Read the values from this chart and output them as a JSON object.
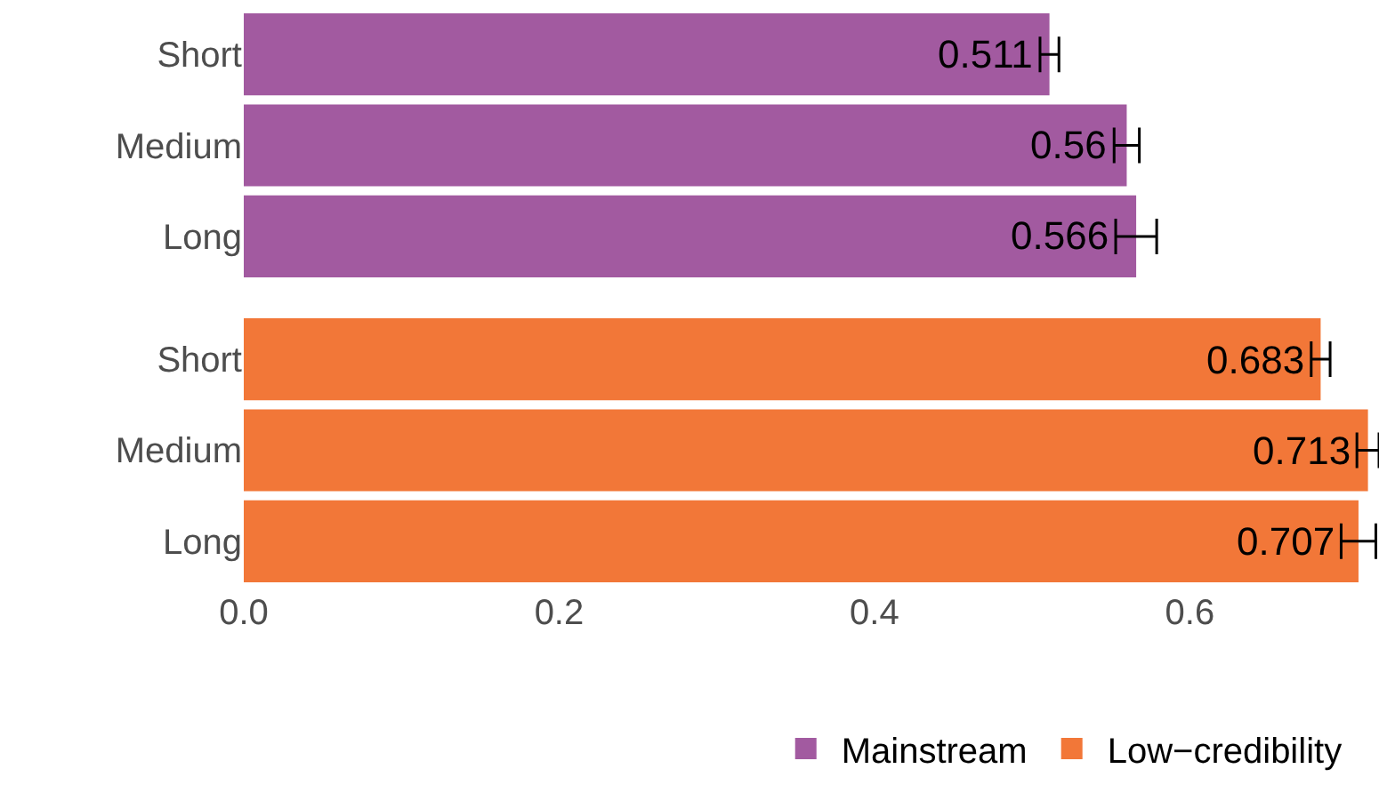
{
  "chart_data": {
    "type": "bar",
    "orientation": "horizontal",
    "categories": [
      "Short",
      "Medium",
      "Long",
      "Short",
      "Medium",
      "Long"
    ],
    "series": [
      {
        "name": "Mainstream",
        "color": "#a25aa0",
        "values": [
          0.511,
          0.56,
          0.566,
          null,
          null,
          null
        ],
        "errors": [
          0.006,
          0.008,
          0.013,
          null,
          null,
          null
        ]
      },
      {
        "name": "Low−credibility",
        "color": "#f27738",
        "values": [
          null,
          null,
          null,
          0.683,
          0.713,
          0.707
        ],
        "errors": [
          null,
          null,
          null,
          0.006,
          0.007,
          0.011
        ]
      }
    ],
    "xlim": [
      0,
      0.72
    ],
    "xticks": [
      {
        "value": 0,
        "label": "0.0"
      },
      {
        "value": 0.2,
        "label": "0.2"
      },
      {
        "value": 0.4,
        "label": "0.4"
      },
      {
        "value": 0.6,
        "label": "0.6"
      }
    ],
    "data_labels": true,
    "legend": "bottom",
    "grid": false
  }
}
